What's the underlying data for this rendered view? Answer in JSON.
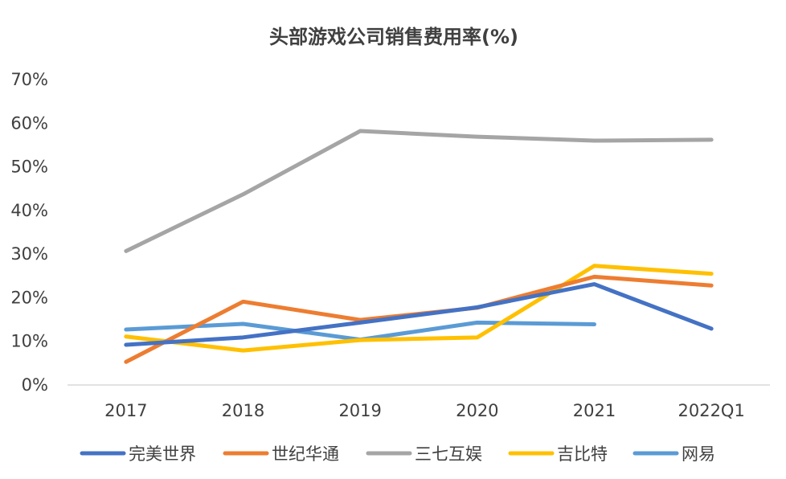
{
  "chart_data": {
    "type": "line",
    "title": "头部游戏公司销售费用率(%)",
    "xlabel": "",
    "ylabel": "",
    "categories": [
      "2017",
      "2018",
      "2019",
      "2020",
      "2021",
      "2022Q1"
    ],
    "ylim": [
      0,
      70
    ],
    "yticks": [
      0,
      10,
      20,
      30,
      40,
      50,
      60,
      70
    ],
    "ytick_labels": [
      "0%",
      "10%",
      "20%",
      "30%",
      "40%",
      "50%",
      "60%",
      "70%"
    ],
    "grid": false,
    "legend_position": "bottom",
    "series": [
      {
        "name": "完美世界",
        "color": "#4472C4",
        "values": [
          9.2,
          10.9,
          14.3,
          17.8,
          23.1,
          12.9
        ]
      },
      {
        "name": "世纪华通",
        "color": "#ED7D31",
        "values": [
          5.3,
          19.1,
          14.9,
          17.7,
          24.8,
          22.8
        ]
      },
      {
        "name": "三七互娱",
        "color": "#A5A5A5",
        "values": [
          30.7,
          43.7,
          58.2,
          56.9,
          56.0,
          56.2
        ]
      },
      {
        "name": "吉比特",
        "color": "#FFC000",
        "values": [
          11.1,
          7.9,
          10.3,
          10.9,
          27.3,
          25.5
        ]
      },
      {
        "name": "网易",
        "color": "#5B9BD5",
        "values": [
          12.7,
          14.0,
          10.4,
          14.3,
          13.9,
          null
        ]
      }
    ]
  }
}
